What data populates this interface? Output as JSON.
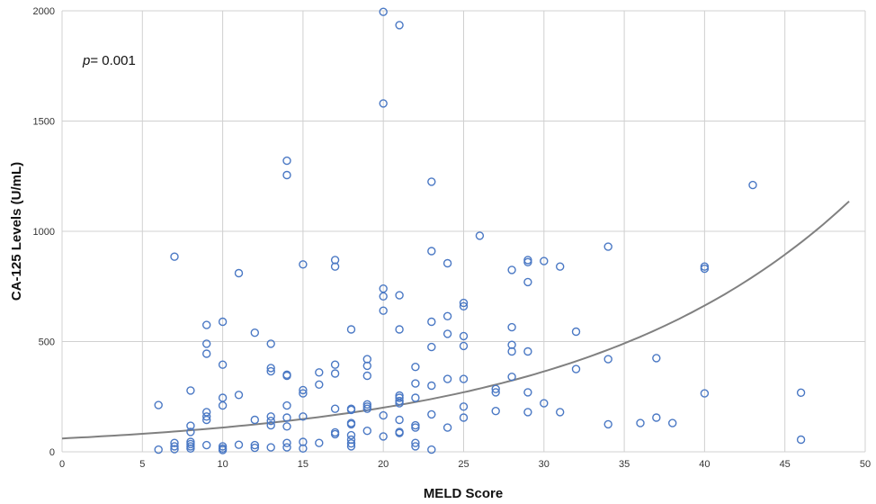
{
  "chart_data": {
    "type": "scatter",
    "title": "",
    "xlabel": "MELD Score",
    "ylabel": "CA-125 Levels (U/mL)",
    "xlim": [
      0,
      50
    ],
    "ylim": [
      0,
      2000
    ],
    "xticks": [
      0,
      5,
      10,
      15,
      20,
      25,
      30,
      35,
      40,
      45,
      50
    ],
    "yticks": [
      0,
      500,
      1000,
      1500,
      2000
    ],
    "grid": true,
    "annotation": {
      "italic": "p",
      "text": "= 0.001"
    },
    "marker_color": "#4a78c4",
    "trend_color": "#808080",
    "trendline": {
      "type": "exponential",
      "a": 60.5,
      "b": 0.05985,
      "x_range": [
        0,
        49
      ]
    },
    "points": [
      [
        6,
        212
      ],
      [
        6,
        10
      ],
      [
        7,
        885
      ],
      [
        7,
        40
      ],
      [
        7,
        25
      ],
      [
        7,
        12
      ],
      [
        8,
        278
      ],
      [
        8,
        118
      ],
      [
        8,
        90
      ],
      [
        8,
        45
      ],
      [
        8,
        35
      ],
      [
        8,
        25
      ],
      [
        8,
        15
      ],
      [
        9,
        575
      ],
      [
        9,
        490
      ],
      [
        9,
        445
      ],
      [
        9,
        180
      ],
      [
        9,
        160
      ],
      [
        9,
        145
      ],
      [
        9,
        30
      ],
      [
        10,
        590
      ],
      [
        10,
        395
      ],
      [
        10,
        245
      ],
      [
        10,
        210
      ],
      [
        10,
        25
      ],
      [
        10,
        15
      ],
      [
        10,
        8
      ],
      [
        11,
        810
      ],
      [
        11,
        258
      ],
      [
        11,
        32
      ],
      [
        12,
        540
      ],
      [
        12,
        145
      ],
      [
        12,
        30
      ],
      [
        12,
        18
      ],
      [
        13,
        490
      ],
      [
        13,
        380
      ],
      [
        13,
        365
      ],
      [
        13,
        160
      ],
      [
        13,
        140
      ],
      [
        13,
        120
      ],
      [
        13,
        20
      ],
      [
        14,
        1320
      ],
      [
        14,
        1255
      ],
      [
        14,
        350
      ],
      [
        14,
        345
      ],
      [
        14,
        210
      ],
      [
        14,
        155
      ],
      [
        14,
        115
      ],
      [
        14,
        40
      ],
      [
        14,
        20
      ],
      [
        15,
        850
      ],
      [
        15,
        280
      ],
      [
        15,
        265
      ],
      [
        15,
        160
      ],
      [
        15,
        45
      ],
      [
        15,
        15
      ],
      [
        16,
        360
      ],
      [
        16,
        305
      ],
      [
        16,
        40
      ],
      [
        17,
        870
      ],
      [
        17,
        840
      ],
      [
        17,
        395
      ],
      [
        17,
        355
      ],
      [
        17,
        195
      ],
      [
        17,
        88
      ],
      [
        17,
        80
      ],
      [
        18,
        555
      ],
      [
        18,
        195
      ],
      [
        18,
        190
      ],
      [
        18,
        130
      ],
      [
        18,
        125
      ],
      [
        18,
        75
      ],
      [
        18,
        55
      ],
      [
        18,
        38
      ],
      [
        18,
        25
      ],
      [
        19,
        420
      ],
      [
        19,
        390
      ],
      [
        19,
        345
      ],
      [
        19,
        215
      ],
      [
        19,
        205
      ],
      [
        19,
        195
      ],
      [
        19,
        95
      ],
      [
        20,
        1995
      ],
      [
        20,
        1580
      ],
      [
        20,
        740
      ],
      [
        20,
        705
      ],
      [
        20,
        640
      ],
      [
        20,
        165
      ],
      [
        20,
        70
      ],
      [
        21,
        1935
      ],
      [
        21,
        710
      ],
      [
        21,
        555
      ],
      [
        21,
        255
      ],
      [
        21,
        245
      ],
      [
        21,
        230
      ],
      [
        21,
        220
      ],
      [
        21,
        145
      ],
      [
        21,
        90
      ],
      [
        21,
        85
      ],
      [
        22,
        385
      ],
      [
        22,
        310
      ],
      [
        22,
        245
      ],
      [
        22,
        120
      ],
      [
        22,
        110
      ],
      [
        22,
        40
      ],
      [
        22,
        25
      ],
      [
        23,
        1225
      ],
      [
        23,
        910
      ],
      [
        23,
        590
      ],
      [
        23,
        475
      ],
      [
        23,
        300
      ],
      [
        23,
        170
      ],
      [
        23,
        10
      ],
      [
        24,
        855
      ],
      [
        24,
        615
      ],
      [
        24,
        535
      ],
      [
        24,
        330
      ],
      [
        24,
        110
      ],
      [
        25,
        675
      ],
      [
        25,
        660
      ],
      [
        25,
        525
      ],
      [
        25,
        480
      ],
      [
        25,
        330
      ],
      [
        25,
        205
      ],
      [
        25,
        155
      ],
      [
        26,
        980
      ],
      [
        27,
        285
      ],
      [
        27,
        270
      ],
      [
        27,
        185
      ],
      [
        28,
        825
      ],
      [
        28,
        565
      ],
      [
        28,
        485
      ],
      [
        28,
        455
      ],
      [
        28,
        340
      ],
      [
        29,
        870
      ],
      [
        29,
        860
      ],
      [
        29,
        770
      ],
      [
        29,
        455
      ],
      [
        29,
        270
      ],
      [
        29,
        180
      ],
      [
        30,
        865
      ],
      [
        30,
        220
      ],
      [
        31,
        840
      ],
      [
        31,
        180
      ],
      [
        32,
        545
      ],
      [
        32,
        375
      ],
      [
        34,
        930
      ],
      [
        34,
        420
      ],
      [
        34,
        125
      ],
      [
        36,
        130
      ],
      [
        37,
        425
      ],
      [
        37,
        155
      ],
      [
        38,
        130
      ],
      [
        40,
        840
      ],
      [
        40,
        830
      ],
      [
        40,
        265
      ],
      [
        43,
        1210
      ],
      [
        46,
        268
      ],
      [
        46,
        55
      ]
    ]
  }
}
